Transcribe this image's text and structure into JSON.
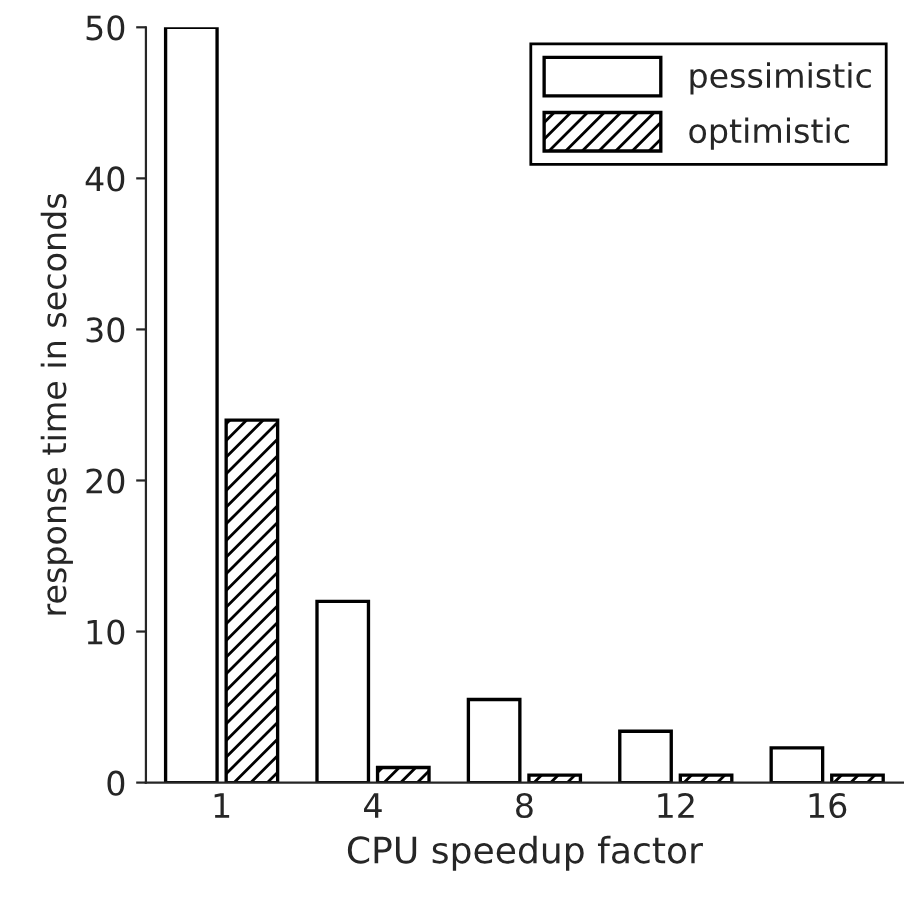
{
  "chart_data": {
    "type": "bar",
    "xlabel": "CPU speedup factor",
    "ylabel": "response time in seconds",
    "categories": [
      "1",
      "4",
      "8",
      "12",
      "16"
    ],
    "series": [
      {
        "name": "pessimistic",
        "color": "#ffffff",
        "values": [
          50,
          12,
          5.5,
          3.4,
          2.3
        ]
      },
      {
        "name": "optimistic",
        "color": "#000000",
        "values": [
          24,
          1,
          0.5,
          0.5,
          0.5
        ]
      }
    ],
    "ylim": [
      0,
      50
    ],
    "yticks": [
      0,
      10,
      20,
      30,
      40,
      50
    ],
    "grid": false,
    "legend": "top right"
  }
}
